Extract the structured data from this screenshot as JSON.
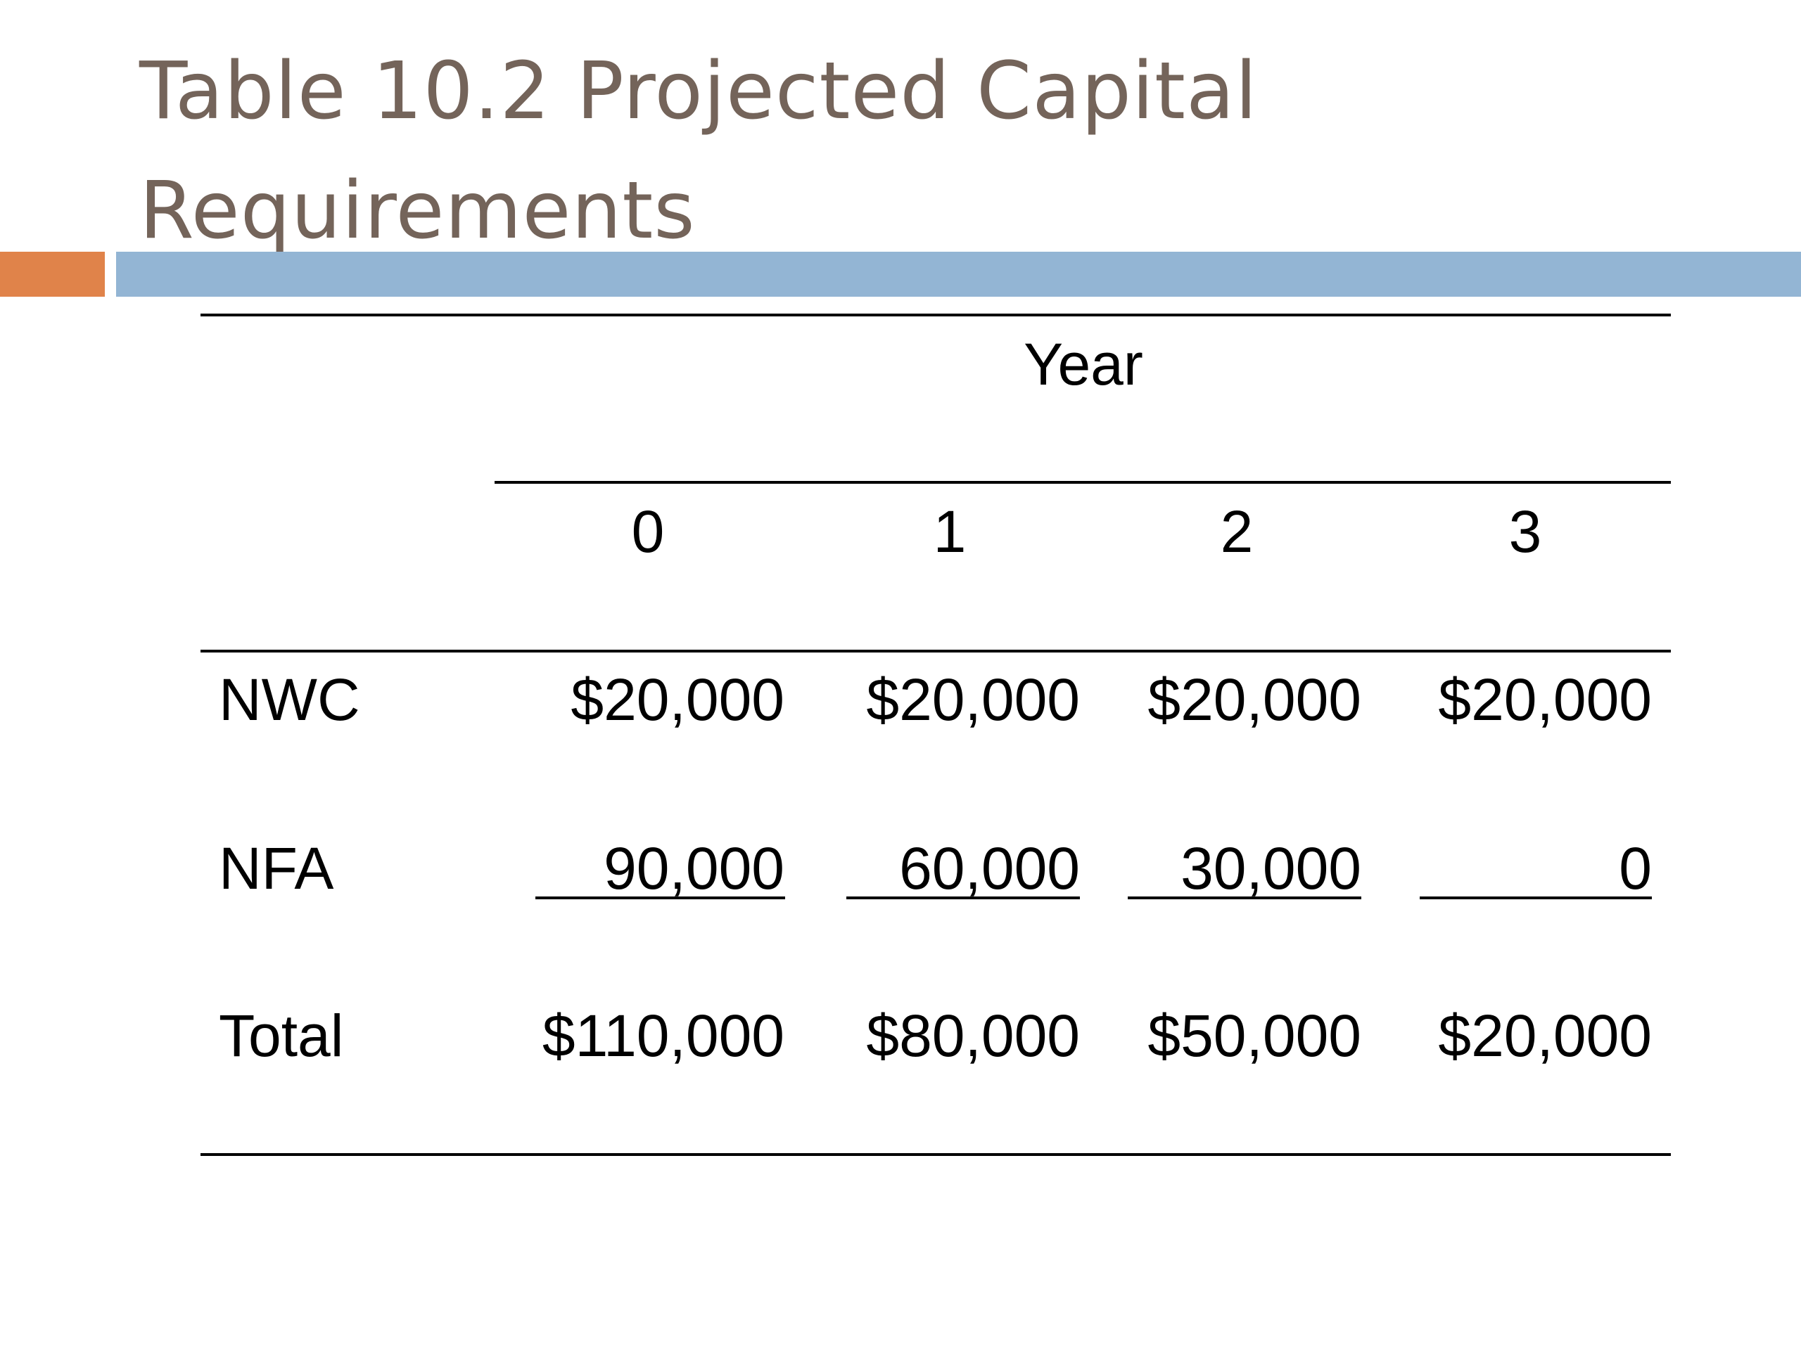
{
  "title": "Table 10.2 Projected Capital Requirements",
  "colors": {
    "title": "#74645a",
    "accent_orange": "#e0834a",
    "accent_blue": "#93b5d4"
  },
  "table": {
    "group_header": "Year",
    "columns": [
      "0",
      "1",
      "2",
      "3"
    ],
    "rows": [
      {
        "label": "NWC",
        "values": [
          "$20,000",
          "$20,000",
          "$20,000",
          "$20,000"
        ]
      },
      {
        "label": "NFA",
        "values": [
          "90,000",
          "60,000",
          "30,000",
          "0"
        ]
      },
      {
        "label": "Total",
        "values": [
          "$110,000",
          "$80,000",
          "$50,000",
          "$20,000"
        ]
      }
    ]
  }
}
